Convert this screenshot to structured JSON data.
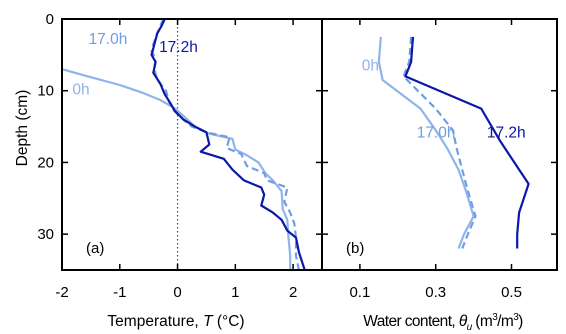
{
  "colors": {
    "h0": "#8fb4ec",
    "h17_0": "#6f9ee3",
    "h17_2": "#0b18a8",
    "axis": "#000000",
    "zero_line": "#555555"
  },
  "chart_data": [
    {
      "type": "line",
      "panel_label": "(a)",
      "xlabel_prefix": "Temperature, ",
      "xlabel_var": "T",
      "xlabel_suffix": " (°C)",
      "ylabel": "Depth (cm)",
      "xlim": [
        -2,
        2.5
      ],
      "ylim": [
        35,
        0
      ],
      "xticks": [
        -2,
        -1,
        0,
        1,
        2
      ],
      "xtick_labels": [
        "-2",
        "-1",
        "0",
        "1",
        "2"
      ],
      "yticks": [
        0,
        10,
        20,
        30
      ],
      "ytick_labels": [
        "0",
        "10",
        "20",
        "30"
      ],
      "reference_line_x": 0,
      "series": [
        {
          "name": "0h",
          "color_key": "h0",
          "dash": "solid",
          "label_x": -1.82,
          "label_y": 10.5,
          "points": [
            [
              -2.0,
              7.0
            ],
            [
              -1.55,
              8.0
            ],
            [
              -1.0,
              9.2
            ],
            [
              -0.6,
              10.3
            ],
            [
              -0.3,
              11.3
            ],
            [
              -0.1,
              12.2
            ],
            [
              0.0,
              12.8
            ],
            [
              0.1,
              13.5
            ],
            [
              0.3,
              15.0
            ],
            [
              0.55,
              16.0
            ],
            [
              0.95,
              16.7
            ],
            [
              1.0,
              18.2
            ],
            [
              1.2,
              19.0
            ],
            [
              1.4,
              20.0
            ],
            [
              1.52,
              21.5
            ],
            [
              1.65,
              22.5
            ],
            [
              1.8,
              24.0
            ],
            [
              1.82,
              26.5
            ],
            [
              1.9,
              28.0
            ],
            [
              1.92,
              30.5
            ],
            [
              1.95,
              33.0
            ],
            [
              1.95,
              35.0
            ]
          ]
        },
        {
          "name": "17.0h",
          "color_key": "h17_0",
          "dash": "dashed",
          "label_x": -1.54,
          "label_y": 3.5,
          "points": [
            [
              -0.25,
              0.0
            ],
            [
              -0.3,
              1.0
            ],
            [
              -0.35,
              2.0
            ],
            [
              -0.42,
              3.5
            ],
            [
              -0.45,
              4.5
            ],
            [
              -0.38,
              5.5
            ],
            [
              -0.4,
              7.0
            ],
            [
              -0.35,
              8.5
            ],
            [
              -0.2,
              10.0
            ],
            [
              -0.15,
              11.5
            ],
            [
              -0.08,
              12.6
            ],
            [
              0.05,
              13.7
            ],
            [
              0.25,
              15.0
            ],
            [
              0.5,
              15.8
            ],
            [
              0.9,
              16.5
            ],
            [
              0.85,
              18.0
            ],
            [
              1.1,
              18.8
            ],
            [
              1.2,
              20.5
            ],
            [
              1.5,
              21.5
            ],
            [
              1.55,
              22.5
            ],
            [
              1.9,
              23.5
            ],
            [
              1.85,
              25.5
            ],
            [
              1.95,
              27.0
            ],
            [
              2.02,
              28.5
            ],
            [
              2.05,
              30.5
            ],
            [
              2.05,
              33.0
            ],
            [
              2.1,
              35.0
            ]
          ]
        },
        {
          "name": "17.2h",
          "color_key": "h17_2",
          "dash": "solid",
          "label_x": -0.32,
          "label_y": 4.6,
          "points": [
            [
              -0.22,
              0.0
            ],
            [
              -0.28,
              1.0
            ],
            [
              -0.35,
              2.0
            ],
            [
              -0.4,
              3.5
            ],
            [
              -0.45,
              5.0
            ],
            [
              -0.38,
              6.0
            ],
            [
              -0.42,
              7.5
            ],
            [
              -0.3,
              9.0
            ],
            [
              -0.22,
              10.5
            ],
            [
              -0.12,
              11.8
            ],
            [
              -0.05,
              12.8
            ],
            [
              0.1,
              14.0
            ],
            [
              0.3,
              15.0
            ],
            [
              0.5,
              15.8
            ],
            [
              0.55,
              17.5
            ],
            [
              0.4,
              18.5
            ],
            [
              0.8,
              19.5
            ],
            [
              0.95,
              21.0
            ],
            [
              1.15,
              22.5
            ],
            [
              1.45,
              23.5
            ],
            [
              1.5,
              24.5
            ],
            [
              1.45,
              26.0
            ],
            [
              1.65,
              27.0
            ],
            [
              1.8,
              28.0
            ],
            [
              1.9,
              29.5
            ],
            [
              2.05,
              30.5
            ],
            [
              2.1,
              32.5
            ],
            [
              2.2,
              35.0
            ]
          ]
        }
      ]
    },
    {
      "type": "line",
      "panel_label": "(b)",
      "xlabel_prefix": "Water content, ",
      "xlabel_var": "θ",
      "xlabel_sub": "u",
      "xlabel_suffix": " (m",
      "xlabel_sup": "3",
      "xlabel_suffix2": "/m",
      "xlabel_sup2": "3",
      "xlabel_end": ")",
      "xlim": [
        0.0,
        0.62
      ],
      "ylim": [
        35,
        0
      ],
      "xticks": [
        0.1,
        0.3,
        0.5
      ],
      "xtick_labels": [
        "0.1",
        "0.3",
        "0.5"
      ],
      "yticks": [
        0,
        10,
        20,
        30
      ],
      "series": [
        {
          "name": "0h",
          "color_key": "h0",
          "dash": "solid",
          "label_x": 0.105,
          "label_y": 7.2,
          "points": [
            [
              0.155,
              2.5
            ],
            [
              0.15,
              6.0
            ],
            [
              0.16,
              8.5
            ],
            [
              0.26,
              12.5
            ],
            [
              0.3,
              15.5
            ],
            [
              0.33,
              18.0
            ],
            [
              0.36,
              21.0
            ],
            [
              0.38,
              24.0
            ],
            [
              0.4,
              27.5
            ],
            [
              0.375,
              30.0
            ],
            [
              0.36,
              32.0
            ]
          ]
        },
        {
          "name": "17.0h",
          "color_key": "h17_0",
          "dash": "dashed",
          "label_x": 0.25,
          "label_y": 16.5,
          "points": [
            [
              0.235,
              2.5
            ],
            [
              0.23,
              6.0
            ],
            [
              0.215,
              8.0
            ],
            [
              0.3,
              12.5
            ],
            [
              0.345,
              15.5
            ],
            [
              0.355,
              18.0
            ],
            [
              0.37,
              21.0
            ],
            [
              0.385,
              24.0
            ],
            [
              0.405,
              27.5
            ],
            [
              0.385,
              30.0
            ],
            [
              0.37,
              32.0
            ]
          ]
        },
        {
          "name": "17.2h",
          "color_key": "h17_2",
          "dash": "solid",
          "label_x": 0.435,
          "label_y": 16.5,
          "points": [
            [
              0.24,
              2.5
            ],
            [
              0.235,
              6.0
            ],
            [
              0.22,
              8.0
            ],
            [
              0.42,
              12.5
            ],
            [
              0.47,
              17.0
            ],
            [
              0.52,
              21.0
            ],
            [
              0.545,
              23.0
            ],
            [
              0.52,
              27.0
            ],
            [
              0.515,
              30.0
            ],
            [
              0.515,
              32.0
            ]
          ]
        }
      ]
    }
  ]
}
